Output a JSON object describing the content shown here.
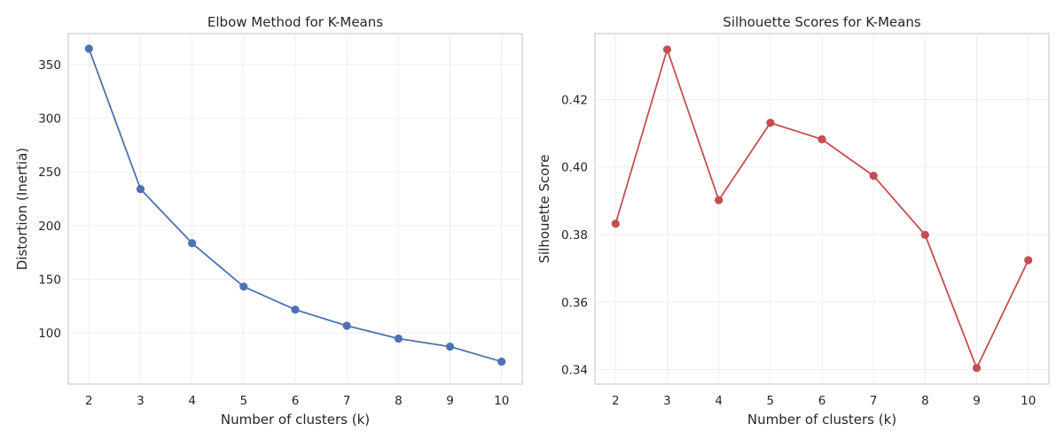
{
  "chart_data": [
    {
      "type": "line",
      "title": "Elbow Method for K-Means",
      "xlabel": "Number of clusters (k)",
      "ylabel": "Distortion (Inertia)",
      "x": [
        2,
        3,
        4,
        5,
        6,
        7,
        8,
        9,
        10
      ],
      "series": [
        {
          "values": [
            365,
            234,
            183.5,
            143,
            121.5,
            106.5,
            94.5,
            87,
            73
          ],
          "color": "#4c72b0",
          "marker": "circle"
        }
      ],
      "xlim": [
        1.6,
        10.4
      ],
      "ylim": [
        52,
        379
      ],
      "xticks": [
        "2",
        "3",
        "4",
        "5",
        "6",
        "7",
        "8",
        "9",
        "10"
      ],
      "yticks": [
        100,
        150,
        200,
        250,
        300,
        350
      ],
      "ytick_labels": [
        "100",
        "150",
        "200",
        "250",
        "300",
        "350"
      ],
      "grid": true
    },
    {
      "type": "line",
      "title": "Silhouette Scores for K-Means",
      "xlabel": "Number of clusters (k)",
      "ylabel": "Silhouette Score",
      "x": [
        2,
        3,
        4,
        5,
        6,
        7,
        8,
        9,
        10
      ],
      "series": [
        {
          "values": [
            0.3832,
            0.4348,
            0.3902,
            0.4131,
            0.4082,
            0.3974,
            0.3799,
            0.3405,
            0.3724
          ],
          "color": "#c44e52",
          "marker": "circle"
        }
      ],
      "xlim": [
        1.6,
        10.4
      ],
      "ylim": [
        0.3357,
        0.4395
      ],
      "xticks": [
        "2",
        "3",
        "4",
        "5",
        "6",
        "7",
        "8",
        "9",
        "10"
      ],
      "yticks": [
        0.34,
        0.36,
        0.38,
        0.4,
        0.42
      ],
      "ytick_labels": [
        "0.34",
        "0.36",
        "0.38",
        "0.40",
        "0.42"
      ],
      "grid": true
    }
  ]
}
